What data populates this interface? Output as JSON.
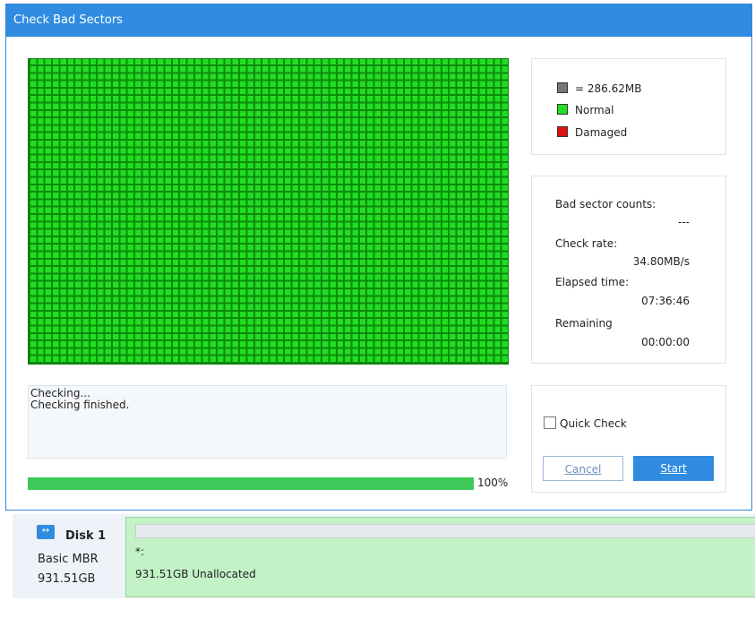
{
  "dialog": {
    "title": "Check Bad Sectors"
  },
  "legend": {
    "unit": "= 286.62MB",
    "normal": "Normal",
    "damaged": "Damaged",
    "colors": {
      "unit": "#777777",
      "normal": "#22dd22",
      "damaged": "#dd1111"
    }
  },
  "stats": {
    "bad_label": "Bad sector counts:",
    "bad_value": "---",
    "rate_label": "Check rate:",
    "rate_value": "34.80MB/s",
    "elapsed_label": "Elapsed time:",
    "elapsed_value": "07:36:46",
    "remaining_label": "Remaining",
    "remaining_value": "00:00:00"
  },
  "log": [
    "Checking...",
    "Checking finished."
  ],
  "progress": {
    "value": 100,
    "label": "100%"
  },
  "controls": {
    "quick_check": "Quick Check",
    "quick_checked": false,
    "cancel": "Cancel",
    "start": "Start"
  },
  "disk": {
    "name": "Disk 1",
    "type": "Basic MBR",
    "size": "931.51GB",
    "partition_label": "*:",
    "partition_info": "931.51GB Unallocated"
  }
}
